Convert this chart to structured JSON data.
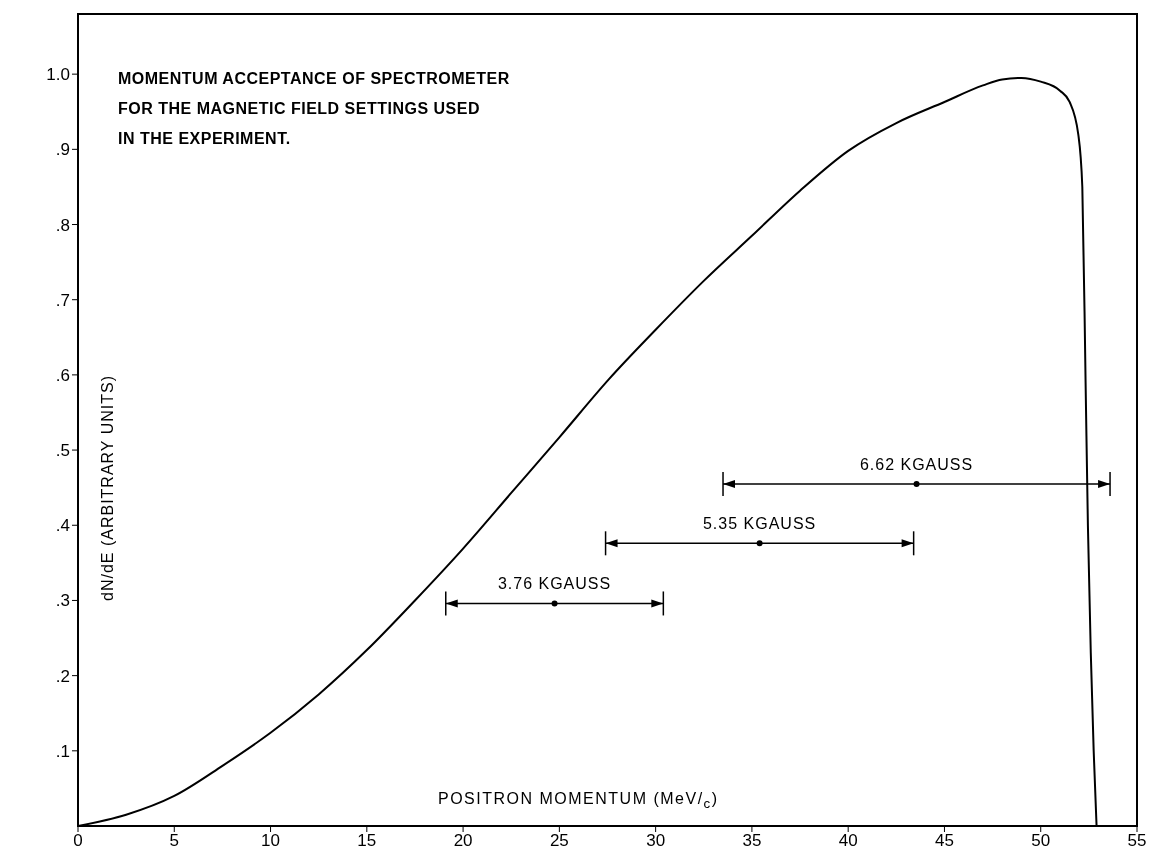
{
  "chart_data": {
    "type": "line",
    "title": "MOMENTUM ACCEPTANCE OF SPECTROMETER\nFOR THE MAGNETIC FIELD SETTINGS USED\nIN THE EXPERIMENT.",
    "xlabel": "POSITRON MOMENTUM (MeV/$_{c}$)",
    "ylabel": "dN/dE (ARBITRARY UNITS)",
    "xlim": [
      0,
      55
    ],
    "xticks": [
      0,
      5,
      10,
      15,
      20,
      25,
      30,
      35,
      40,
      45,
      50,
      55
    ],
    "ylim": [
      0,
      1.08
    ],
    "yticks": [
      {
        "value": 0.1,
        "label": ".1"
      },
      {
        "value": 0.2,
        "label": ".2"
      },
      {
        "value": 0.3,
        "label": ".3"
      },
      {
        "value": 0.4,
        "label": ".4"
      },
      {
        "value": 0.5,
        "label": ".5"
      },
      {
        "value": 0.6,
        "label": ".6"
      },
      {
        "value": 0.7,
        "label": ".7"
      },
      {
        "value": 0.8,
        "label": ".8"
      },
      {
        "value": 0.9,
        "label": ".9"
      },
      {
        "value": 1.0,
        "label": "1.0"
      }
    ],
    "marker": "none",
    "series": [
      {
        "color": "#000000",
        "x": [
          0,
          2.5,
          5,
          7.5,
          10,
          12.5,
          15,
          17.5,
          20,
          22.5,
          25,
          27.6,
          30,
          32.5,
          35,
          37.5,
          40,
          42.5,
          45,
          47,
          48,
          49,
          50,
          51,
          51.5,
          51.95,
          52.16,
          52.33,
          52.45,
          52.6,
          52.75,
          52.9
        ],
        "values": [
          0,
          0.015,
          0.04,
          0.08,
          0.124,
          0.175,
          0.234,
          0.3,
          0.369,
          0.443,
          0.517,
          0.595,
          0.66,
          0.725,
          0.785,
          0.845,
          0.898,
          0.935,
          0.963,
          0.985,
          0.993,
          0.995,
          0.99,
          0.978,
          0.963,
          0.92,
          0.85,
          0.59,
          0.4,
          0.23,
          0.1,
          0
        ]
      },
      {
        "name": "3.76 KGAUSS",
        "type": "scatter",
        "marker": "circle",
        "color": "#000000",
        "x": [
          24.75
        ],
        "values": [
          0.296
        ],
        "xerrors": [
          [
            19.1,
            30.4
          ]
        ]
      },
      {
        "name": "5.35 KGAUSS",
        "type": "scatter",
        "marker": "circle",
        "color": "#000000",
        "x": [
          35.4
        ],
        "values": [
          0.376
        ],
        "xerrors": [
          [
            27.4,
            43.4
          ]
        ]
      },
      {
        "name": "6.62 KGAUSS",
        "type": "scatter",
        "marker": "circle",
        "color": "#000000",
        "x": [
          43.55
        ],
        "values": [
          0.455
        ],
        "xerrors": [
          [
            33.5,
            53.6
          ]
        ]
      }
    ]
  }
}
